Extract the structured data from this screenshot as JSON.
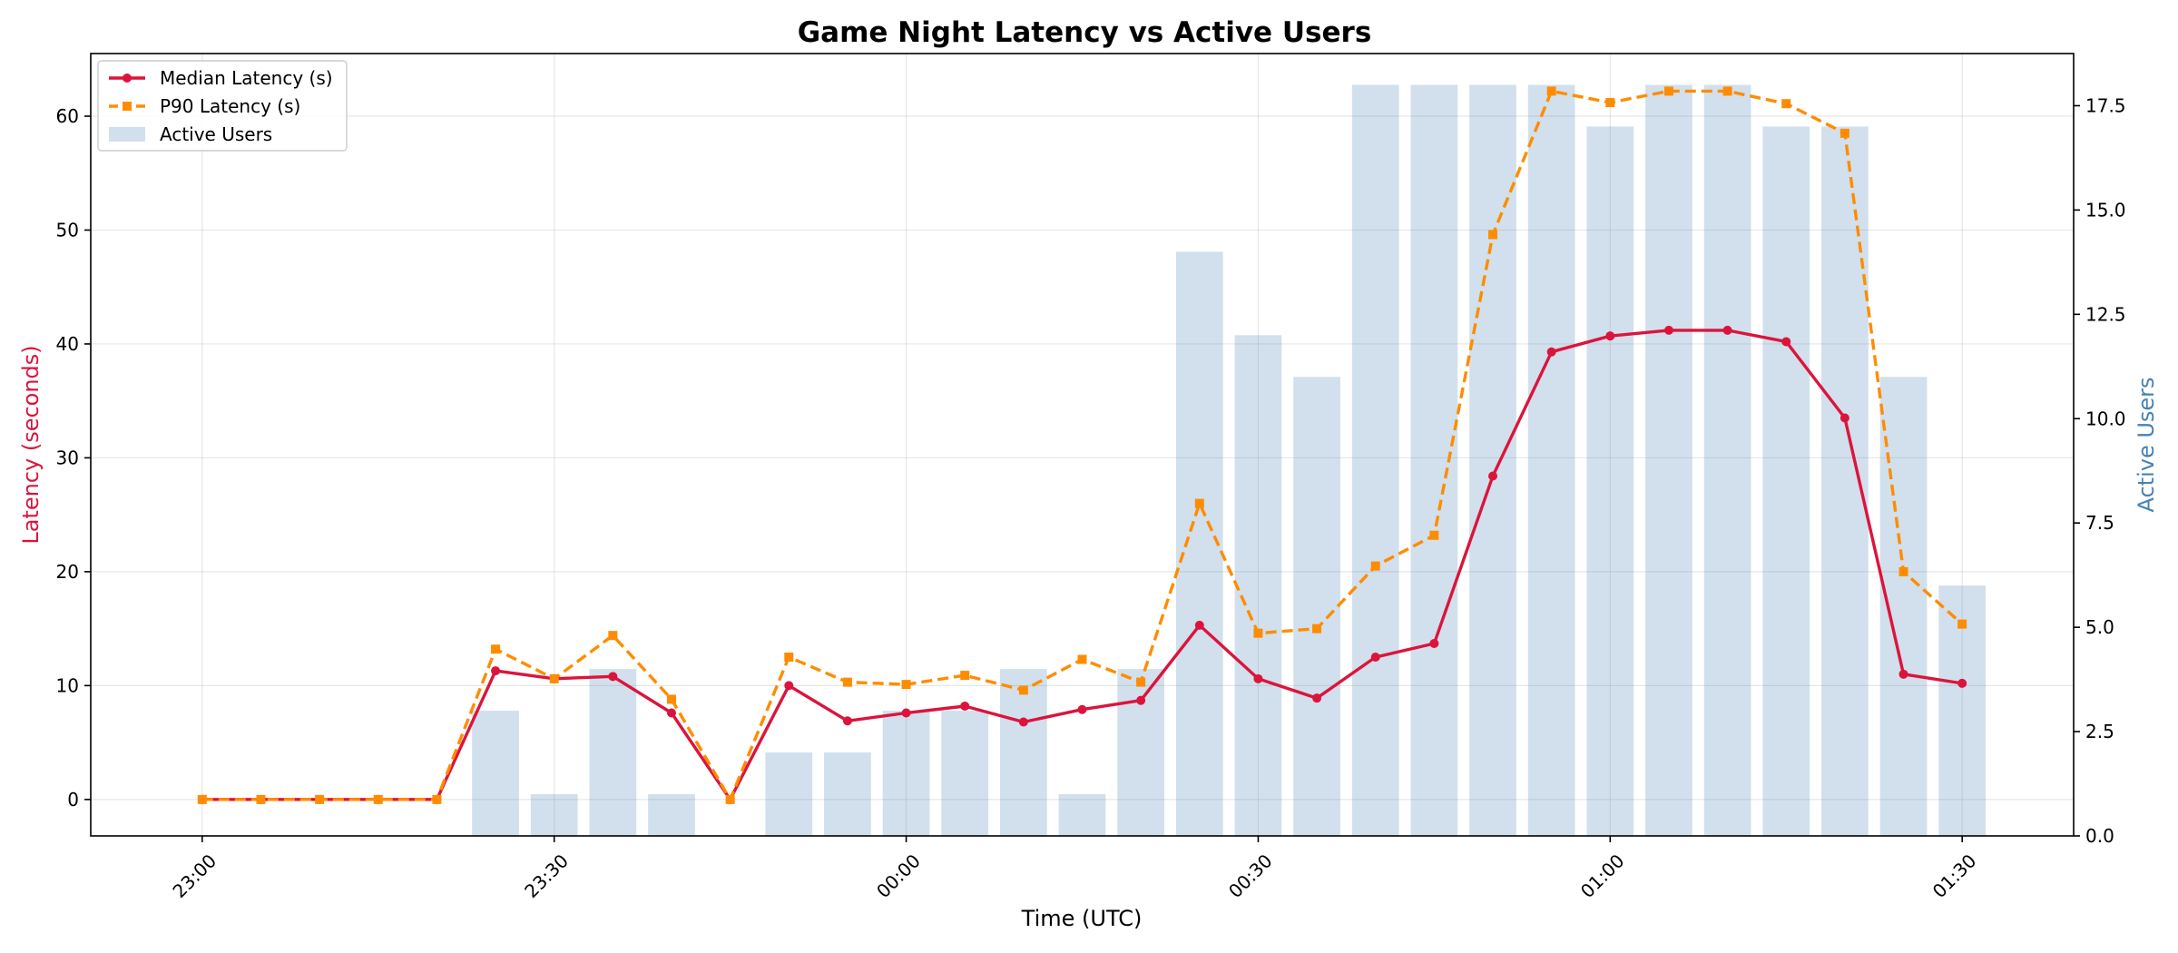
{
  "chart_data": {
    "type": "bar+line",
    "title": "Game Night Latency vs Active Users",
    "xlabel": "Time (UTC)",
    "ylabel_left": "Latency (seconds)",
    "ylabel_right": "Active Users",
    "x_ticks": [
      {
        "t": 0,
        "label": "23:00"
      },
      {
        "t": 30,
        "label": "23:30"
      },
      {
        "t": 60,
        "label": "00:00"
      },
      {
        "t": 90,
        "label": "00:30"
      },
      {
        "t": 120,
        "label": "01:00"
      },
      {
        "t": 150,
        "label": "01:30"
      }
    ],
    "x_minutes_from_first_tick": [
      0,
      5,
      10,
      15,
      20,
      25,
      30,
      35,
      40,
      45,
      50,
      55,
      60,
      65,
      70,
      75,
      80,
      85,
      90,
      95,
      100,
      105,
      110,
      115,
      120,
      125,
      130,
      135,
      140,
      145,
      150
    ],
    "xlim_minutes": [
      -9.5,
      159.5
    ],
    "ylim_left": [
      -3.2,
      65.5
    ],
    "ylim_right": [
      0,
      18.75
    ],
    "y_ticks_left": [
      "0",
      "10",
      "20",
      "30",
      "40",
      "50",
      "60"
    ],
    "y_ticks_right": [
      "0.0",
      "2.5",
      "5.0",
      "7.5",
      "10.0",
      "12.5",
      "15.0",
      "17.5"
    ],
    "y_ticks_left_values": [
      0,
      10,
      20,
      30,
      40,
      50,
      60
    ],
    "y_ticks_right_values": [
      0,
      2.5,
      5,
      7.5,
      10,
      12.5,
      15,
      17.5
    ],
    "grid": true,
    "legend_placement": "top-left",
    "series": [
      {
        "name": "Median Latency (s)",
        "type": "line",
        "axis": "left",
        "color": "#dc143c",
        "marker": "circle",
        "values": [
          0,
          0,
          0,
          0,
          0,
          11.3,
          10.6,
          10.8,
          7.6,
          0,
          10,
          6.9,
          7.6,
          8.2,
          6.8,
          7.9,
          8.7,
          15.3,
          10.6,
          8.9,
          12.5,
          13.7,
          28.4,
          39.3,
          40.7,
          41.2,
          41.2,
          40.2,
          33.5,
          11,
          10.2
        ]
      },
      {
        "name": "P90 Latency (s)",
        "type": "line",
        "axis": "left",
        "color": "#ff8c00",
        "marker": "square",
        "dash": true,
        "values": [
          0,
          0,
          0,
          0,
          0,
          13.2,
          10.6,
          14.4,
          8.8,
          0,
          12.5,
          10.3,
          10.1,
          10.9,
          9.6,
          12.3,
          10.3,
          26,
          14.6,
          15,
          20.5,
          23.2,
          49.6,
          62.2,
          61.2,
          62.2,
          62.2,
          61.1,
          58.5,
          20,
          15.4
        ]
      },
      {
        "name": "Active Users",
        "type": "bar",
        "axis": "right",
        "color": "#4682b4",
        "opacity": 0.25,
        "values": [
          0,
          0,
          0,
          0,
          0,
          3,
          1,
          4,
          1,
          0,
          2,
          2,
          3,
          3,
          4,
          1,
          4,
          14,
          12,
          11,
          18,
          18,
          18,
          18,
          17,
          18,
          18,
          17,
          17,
          11,
          6
        ]
      }
    ]
  }
}
